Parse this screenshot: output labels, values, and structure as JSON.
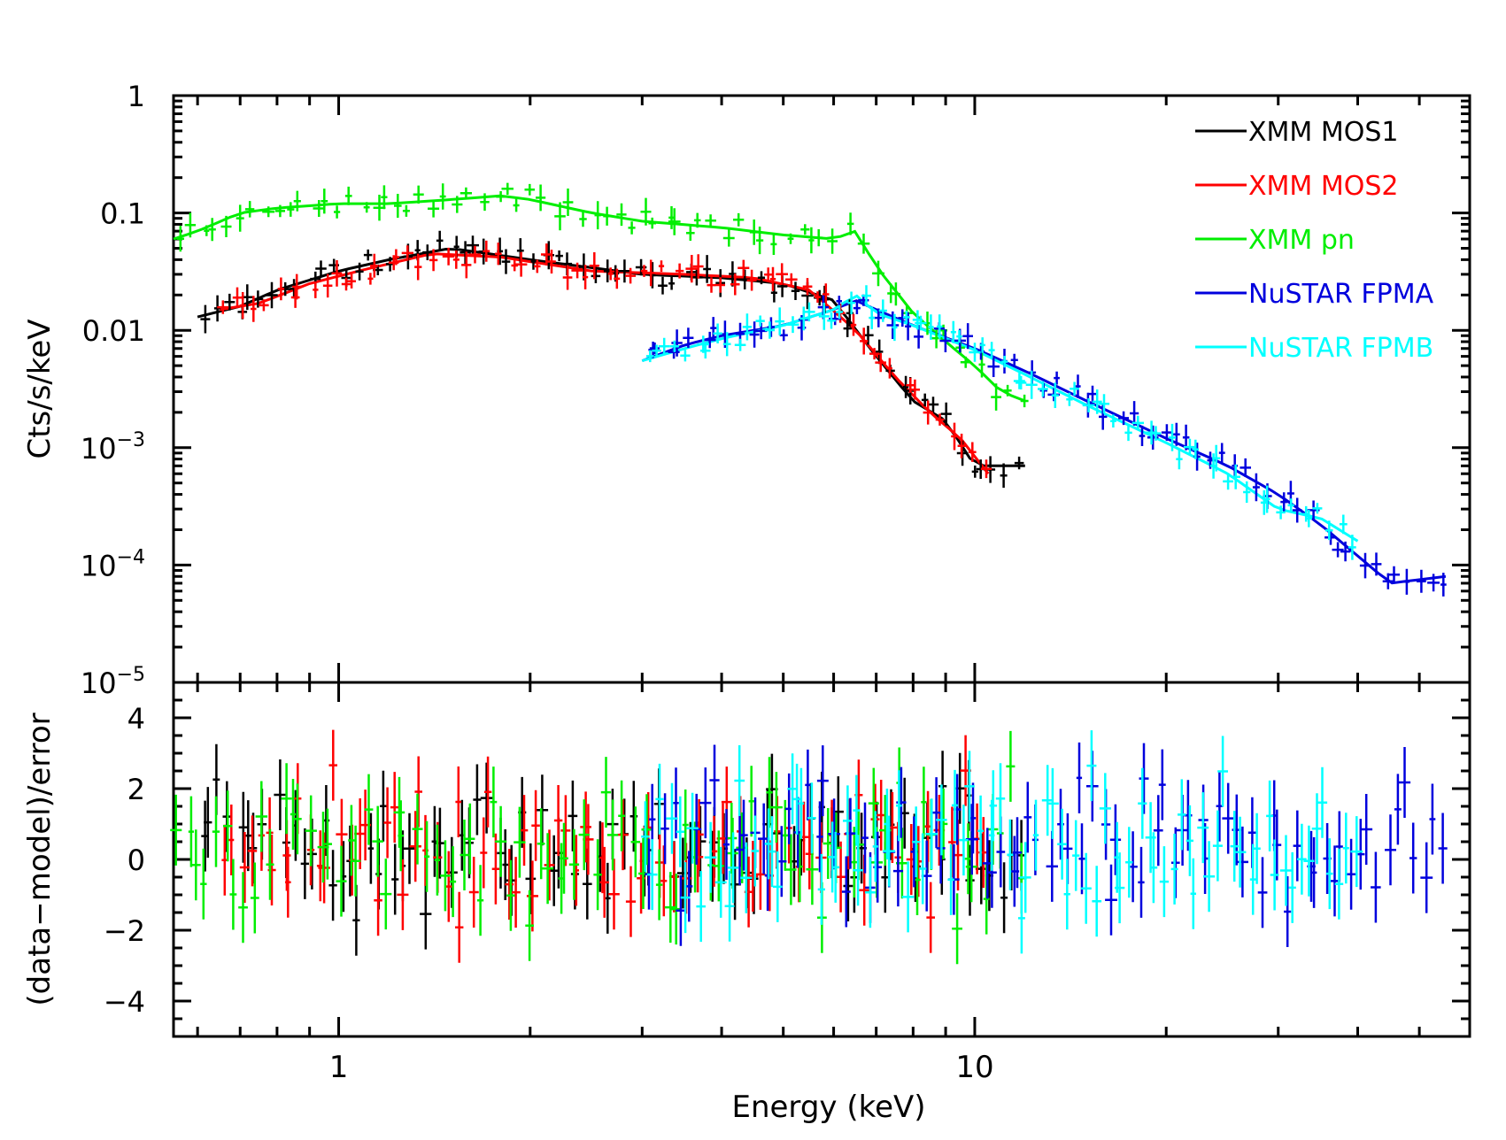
{
  "chart_data": {
    "type": "scatter",
    "title": "",
    "xlabel": "Energy (keV)",
    "x_scale": "log",
    "xlim": [
      0.55,
      60
    ],
    "x_ticks": [
      {
        "value": 1,
        "label": "1"
      },
      {
        "value": 10,
        "label": "10"
      }
    ],
    "panels": [
      {
        "id": "spectrum",
        "ylabel": "Cts/s/keV",
        "y_scale": "log",
        "ylim": [
          1e-05,
          1
        ],
        "y_ticks": [
          {
            "value": 1,
            "label": "1"
          },
          {
            "value": 0.1,
            "label": "0.1"
          },
          {
            "value": 0.01,
            "label": "0.01"
          },
          {
            "value": 0.001,
            "base": "10",
            "exp": "−3"
          },
          {
            "value": 0.0001,
            "base": "10",
            "exp": "−4"
          },
          {
            "value": 1e-05,
            "base": "10",
            "exp": "−5"
          }
        ]
      },
      {
        "id": "residuals",
        "ylabel": "(data−model)/error",
        "y_scale": "linear",
        "ylim": [
          -5,
          5
        ],
        "y_ticks": [
          {
            "value": 4,
            "label": "4"
          },
          {
            "value": 2,
            "label": "2"
          },
          {
            "value": 0,
            "label": "0"
          },
          {
            "value": -2,
            "label": "−2"
          },
          {
            "value": -4,
            "label": "−4"
          }
        ]
      }
    ],
    "legend_position": "top-right",
    "series": [
      {
        "name": "XMM MOS1",
        "color": "#000000",
        "x": [
          0.6,
          0.7,
          0.8,
          1.0,
          1.2,
          1.5,
          2.0,
          3.0,
          4.0,
          5.0,
          6.0,
          7.0,
          8.0,
          9.0,
          10.0,
          12.0
        ],
        "y": [
          0.013,
          0.016,
          0.022,
          0.032,
          0.04,
          0.05,
          0.04,
          0.03,
          0.028,
          0.025,
          0.018,
          0.006,
          0.0025,
          0.0017,
          0.0007,
          0.0007
        ]
      },
      {
        "name": "XMM MOS2",
        "color": "#ff0000",
        "x": [
          0.65,
          0.75,
          0.9,
          1.1,
          1.4,
          1.8,
          2.5,
          3.5,
          4.5,
          5.5,
          6.5,
          7.5,
          8.5,
          9.5,
          10.5
        ],
        "y": [
          0.015,
          0.017,
          0.025,
          0.033,
          0.045,
          0.042,
          0.032,
          0.03,
          0.028,
          0.022,
          0.01,
          0.004,
          0.002,
          0.0012,
          0.0006
        ]
      },
      {
        "name": "XMM pn",
        "color": "#00ee00",
        "x": [
          0.55,
          0.6,
          0.7,
          0.8,
          1.0,
          1.2,
          1.5,
          1.8,
          2.0,
          2.5,
          3.0,
          4.0,
          5.0,
          6.0,
          6.5,
          7.0,
          8.0,
          9.0,
          10.0,
          11.0,
          12.0
        ],
        "y": [
          0.06,
          0.07,
          0.1,
          0.11,
          0.12,
          0.12,
          0.13,
          0.14,
          0.13,
          0.1,
          0.085,
          0.075,
          0.065,
          0.06,
          0.07,
          0.035,
          0.014,
          0.008,
          0.005,
          0.003,
          0.0025
        ]
      },
      {
        "name": "NuSTAR FPMA",
        "color": "#0000dd",
        "x": [
          3.0,
          3.5,
          4.0,
          5.0,
          6.0,
          6.5,
          7.0,
          8.0,
          10.0,
          12.0,
          15.0,
          20.0,
          25.0,
          30.0,
          35.0,
          45.0,
          55.0
        ],
        "y": [
          0.0055,
          0.0075,
          0.009,
          0.011,
          0.015,
          0.018,
          0.015,
          0.011,
          0.007,
          0.0045,
          0.0025,
          0.0012,
          0.0007,
          0.0004,
          0.00022,
          7e-05,
          8e-05
        ]
      },
      {
        "name": "NuSTAR FPMB",
        "color": "#00ffff",
        "x": [
          3.0,
          3.5,
          4.0,
          5.0,
          6.0,
          6.5,
          7.0,
          8.0,
          10.0,
          12.0,
          15.0,
          20.0,
          25.0,
          30.0,
          35.0,
          40.0
        ],
        "y": [
          0.0055,
          0.007,
          0.0085,
          0.011,
          0.015,
          0.02,
          0.014,
          0.011,
          0.0068,
          0.0042,
          0.0023,
          0.0011,
          0.0006,
          0.0003,
          0.00025,
          0.00016
        ]
      }
    ]
  }
}
